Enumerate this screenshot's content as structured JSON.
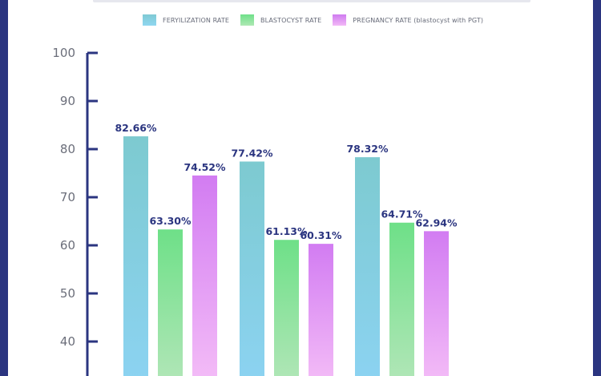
{
  "chart_data": {
    "type": "bar",
    "categories": [
      "",
      "",
      ""
    ],
    "series": [
      {
        "name": "FERYILIZATION RATE",
        "values": [
          82.66,
          77.42,
          78.32
        ],
        "labels": [
          "82.66%",
          "77.42%",
          "78.32%"
        ]
      },
      {
        "name": "BLASTOCYST RATE",
        "values": [
          63.3,
          61.13,
          64.71
        ],
        "labels": [
          "63.30%",
          "61.13%",
          "64.71%"
        ]
      },
      {
        "name": "PREGNANCY RATE (blastocyst with PGT)",
        "values": [
          74.52,
          60.31,
          62.94
        ],
        "labels": [
          "74.52%",
          "60.31%",
          "62.94%"
        ]
      }
    ],
    "yticks": [
      "100",
      "90",
      "80",
      "70",
      "60",
      "50",
      "40"
    ],
    "ylim": [
      30,
      100
    ],
    "legend_position": "top",
    "grid": false,
    "colors": {
      "axis": "#2b3580",
      "data_label": "#2b3580",
      "series": [
        [
          "#7dcad0",
          "#8cd3f2"
        ],
        [
          "#6ee088",
          "#b2e6b8"
        ],
        [
          "#d27cf2",
          "#f4bdf7"
        ]
      ]
    }
  }
}
